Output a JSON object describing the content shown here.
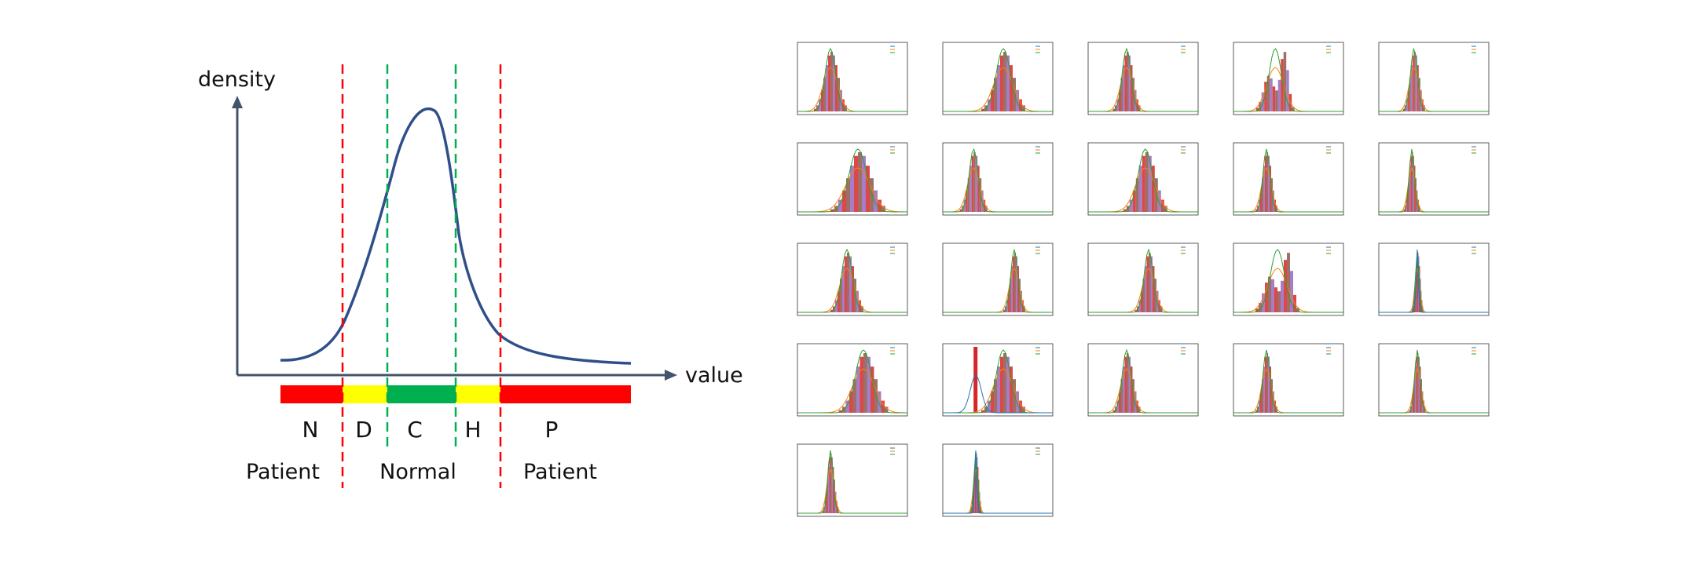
{
  "diagram": {
    "y_axis_label": "density",
    "x_axis_label": "value",
    "zones": [
      {
        "letter": "N",
        "color": "#ff0000"
      },
      {
        "letter": "D",
        "color": "#ffff00"
      },
      {
        "letter": "C",
        "color": "#00b050"
      },
      {
        "letter": "H",
        "color": "#ffff00"
      },
      {
        "letter": "P",
        "color": "#ff0000"
      }
    ],
    "groups": [
      "Patient",
      "Normal",
      "Patient"
    ],
    "curve_color": "#2f4f8a",
    "boundary_colors": {
      "outer": "#ff0000",
      "inner": "#00b050"
    }
  },
  "grid": {
    "rows": 5,
    "columns": 5,
    "panel_count": 22,
    "colors": {
      "red": "#d62728",
      "purple": "#9467bd",
      "brown": "#8c564b",
      "green": "#2ca02c",
      "blue": "#1f77b4",
      "orange": "#ff7f0e"
    }
  }
}
